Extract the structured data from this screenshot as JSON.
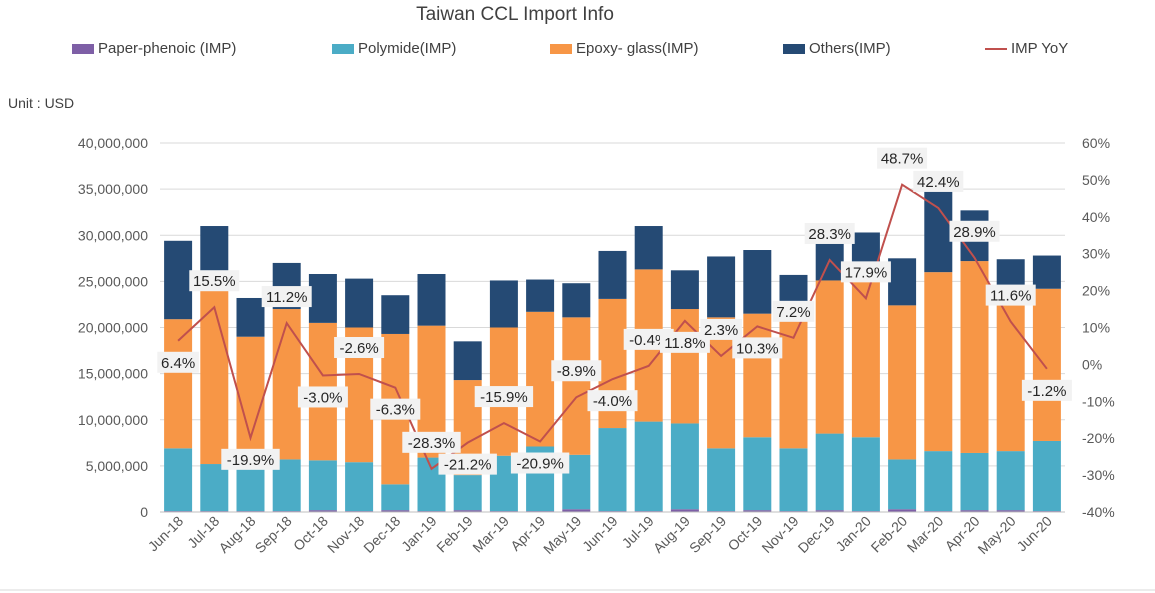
{
  "colors": {
    "paper_phenoic": "#7E5FA6",
    "polymide": "#4BACC6",
    "epoxy_glass": "#F79646",
    "others": "#254A74",
    "yoy": "#C0504D",
    "grid": "#D9D9D9",
    "label_box": "#F2F2F2"
  },
  "unit_label": "Unit : USD",
  "chart_data": {
    "type": "bar",
    "stacked": true,
    "title": "Taiwan CCL Import Info",
    "legend_position": "top",
    "grid": true,
    "categories": [
      "Jun-18",
      "Jul-18",
      "Aug-18",
      "Sep-18",
      "Oct-18",
      "Nov-18",
      "Dec-18",
      "Jan-19",
      "Feb-19",
      "Mar-19",
      "Apr-19",
      "May-19",
      "Jun-19",
      "Jul-19",
      "Aug-19",
      "Sep-19",
      "Oct-19",
      "Nov-19",
      "Dec-19",
      "Jan-20",
      "Feb-20",
      "Mar-20",
      "Apr-20",
      "May-20",
      "Jun-20"
    ],
    "ylim": [
      0,
      40000000
    ],
    "yticks": [
      "0",
      "5,000,000",
      "10,000,000",
      "15,000,000",
      "20,000,000",
      "25,000,000",
      "30,000,000",
      "35,000,000",
      "40,000,000"
    ],
    "y2lim": [
      -40,
      60
    ],
    "y2ticks": [
      "-40%",
      "-30%",
      "-20%",
      "-10%",
      "0%",
      "10%",
      "20%",
      "30%",
      "40%",
      "50%",
      "60%"
    ],
    "series": [
      {
        "name": "Paper-phenoic (IMP)",
        "colorKey": "paper_phenoic",
        "values": [
          100000,
          100000,
          100000,
          100000,
          200000,
          100000,
          200000,
          100000,
          200000,
          100000,
          100000,
          300000,
          100000,
          100000,
          300000,
          100000,
          200000,
          100000,
          200000,
          100000,
          300000,
          100000,
          200000,
          200000,
          100000
        ]
      },
      {
        "name": "Polymide(IMP)",
        "colorKey": "polymide",
        "values": [
          6800000,
          5100000,
          5100000,
          5600000,
          5400000,
          5300000,
          2800000,
          5800000,
          3800000,
          6000000,
          7000000,
          5900000,
          9000000,
          9700000,
          9300000,
          6800000,
          7900000,
          6800000,
          8300000,
          8000000,
          5400000,
          6500000,
          6200000,
          6400000,
          7600000
        ]
      },
      {
        "name": "Epoxy- glass(IMP)",
        "colorKey": "epoxy_glass",
        "values": [
          14000000,
          19700000,
          13800000,
          16300000,
          14900000,
          14600000,
          16300000,
          14300000,
          10300000,
          13900000,
          14600000,
          14900000,
          14000000,
          16500000,
          12400000,
          14200000,
          13400000,
          14500000,
          16600000,
          17400000,
          16700000,
          19400000,
          20800000,
          17000000,
          16500000
        ]
      },
      {
        "name": "Others(IMP)",
        "colorKey": "others",
        "values": [
          8500000,
          6100000,
          4200000,
          5000000,
          5300000,
          5300000,
          4200000,
          5600000,
          4200000,
          5100000,
          3500000,
          3700000,
          5200000,
          4700000,
          4200000,
          6600000,
          6900000,
          4300000,
          5200000,
          4800000,
          5100000,
          9900000,
          5500000,
          3800000,
          3600000
        ]
      }
    ],
    "line_series": {
      "name": "IMP YoY",
      "colorKey": "yoy",
      "values": [
        6.4,
        15.5,
        -19.9,
        11.2,
        -3.0,
        -2.6,
        -6.3,
        -28.3,
        -21.2,
        -15.9,
        -20.9,
        -8.9,
        -4.0,
        -0.4,
        11.8,
        2.3,
        10.3,
        7.2,
        28.3,
        17.9,
        48.7,
        42.4,
        28.9,
        11.6,
        -1.2
      ],
      "labels": [
        "6.4%",
        "15.5%",
        "-19.9%",
        "11.2%",
        "-3.0%",
        "-2.6%",
        "-6.3%",
        "-28.3%",
        "-21.2%",
        "-15.9%",
        "-20.9%",
        "-8.9%",
        "-4.0%",
        "-0.4%",
        "11.8%",
        "2.3%",
        "10.3%",
        "7.2%",
        "28.3%",
        "17.9%",
        "48.7%",
        "42.4%",
        "28.9%",
        "11.6%",
        "-1.2%"
      ]
    }
  }
}
